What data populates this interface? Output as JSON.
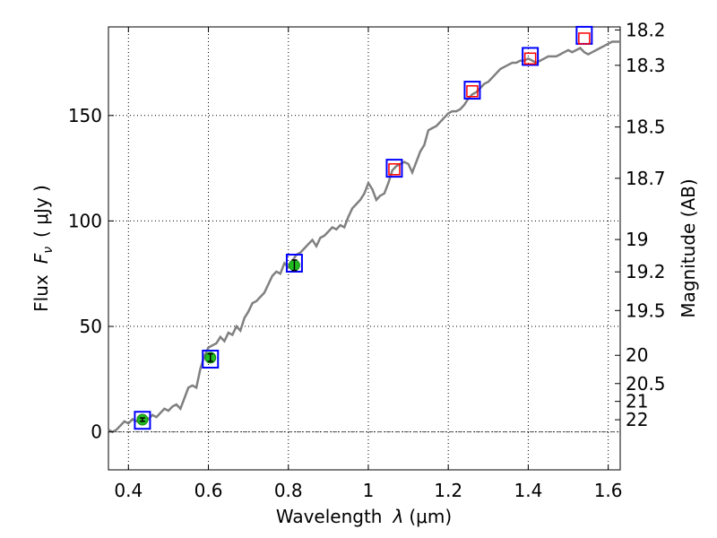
{
  "chart_data": {
    "type": "line",
    "xlabel_text": "Wavelength",
    "xlabel_lambda": "λ",
    "xlabel_unit": "(μm)",
    "ylabel_text": "Flux",
    "ylabel_symbol": "F",
    "ylabel_sub": "ν",
    "ylabel_unit": "( μJy )",
    "y2label": "Magnitude (AB)",
    "xlim": [
      0.35,
      1.63
    ],
    "ylim": [
      -18,
      192
    ],
    "grid": true,
    "xticks": [
      {
        "value": 0.4,
        "label": "0.4"
      },
      {
        "value": 0.6,
        "label": "0.6"
      },
      {
        "value": 0.8,
        "label": "0.8"
      },
      {
        "value": 1.0,
        "label": "1"
      },
      {
        "value": 1.2,
        "label": "1.2"
      },
      {
        "value": 1.4,
        "label": "1.4"
      },
      {
        "value": 1.6,
        "label": "1.6"
      }
    ],
    "yticks": [
      {
        "value": 0,
        "label": "0"
      },
      {
        "value": 50,
        "label": "50"
      },
      {
        "value": 100,
        "label": "100"
      },
      {
        "value": 150,
        "label": "150"
      }
    ],
    "mag_ticks": [
      {
        "mag": 18.2,
        "label": "18.2"
      },
      {
        "mag": 18.3,
        "label": "18.3"
      },
      {
        "mag": 18.5,
        "label": "18.5"
      },
      {
        "mag": 18.7,
        "label": "18.7"
      },
      {
        "mag": 19,
        "label": "19"
      },
      {
        "mag": 19.2,
        "label": "19.2"
      },
      {
        "mag": 19.5,
        "label": "19.5"
      },
      {
        "mag": 20,
        "label": "20"
      },
      {
        "mag": 20.5,
        "label": "20.5"
      },
      {
        "mag": 21,
        "label": "21"
      },
      {
        "mag": 22,
        "label": "22"
      }
    ],
    "zero_line": 0,
    "series": [
      {
        "name": "spectrum",
        "color": "#808080",
        "points": [
          [
            0.35,
            1
          ],
          [
            0.36,
            0
          ],
          [
            0.37,
            1
          ],
          [
            0.38,
            3
          ],
          [
            0.39,
            5
          ],
          [
            0.4,
            4
          ],
          [
            0.41,
            6
          ],
          [
            0.42,
            5
          ],
          [
            0.43,
            6
          ],
          [
            0.44,
            7
          ],
          [
            0.45,
            6
          ],
          [
            0.46,
            8
          ],
          [
            0.47,
            7
          ],
          [
            0.48,
            9
          ],
          [
            0.49,
            11
          ],
          [
            0.5,
            10
          ],
          [
            0.51,
            12
          ],
          [
            0.52,
            13
          ],
          [
            0.53,
            11
          ],
          [
            0.54,
            16
          ],
          [
            0.55,
            21
          ],
          [
            0.56,
            22
          ],
          [
            0.57,
            21
          ],
          [
            0.58,
            30
          ],
          [
            0.59,
            36
          ],
          [
            0.6,
            40
          ],
          [
            0.61,
            41
          ],
          [
            0.62,
            42
          ],
          [
            0.63,
            45
          ],
          [
            0.64,
            43
          ],
          [
            0.65,
            47
          ],
          [
            0.66,
            46
          ],
          [
            0.67,
            50
          ],
          [
            0.68,
            48
          ],
          [
            0.69,
            54
          ],
          [
            0.7,
            57
          ],
          [
            0.71,
            61
          ],
          [
            0.72,
            62
          ],
          [
            0.73,
            64
          ],
          [
            0.74,
            66
          ],
          [
            0.75,
            70
          ],
          [
            0.76,
            74
          ],
          [
            0.77,
            76
          ],
          [
            0.78,
            75
          ],
          [
            0.79,
            80
          ],
          [
            0.8,
            78
          ],
          [
            0.81,
            81
          ],
          [
            0.82,
            84
          ],
          [
            0.83,
            85
          ],
          [
            0.84,
            87
          ],
          [
            0.85,
            89
          ],
          [
            0.86,
            91
          ],
          [
            0.87,
            88
          ],
          [
            0.88,
            92
          ],
          [
            0.89,
            93
          ],
          [
            0.9,
            95
          ],
          [
            0.91,
            97
          ],
          [
            0.92,
            96
          ],
          [
            0.93,
            98
          ],
          [
            0.94,
            97
          ],
          [
            0.95,
            102
          ],
          [
            0.96,
            106
          ],
          [
            0.97,
            108
          ],
          [
            0.98,
            110
          ],
          [
            0.99,
            113
          ],
          [
            1.0,
            118
          ],
          [
            1.01,
            115
          ],
          [
            1.02,
            110
          ],
          [
            1.03,
            112
          ],
          [
            1.04,
            113
          ],
          [
            1.05,
            118
          ],
          [
            1.06,
            124
          ],
          [
            1.07,
            126
          ],
          [
            1.08,
            127
          ],
          [
            1.09,
            128
          ],
          [
            1.1,
            127
          ],
          [
            1.11,
            123
          ],
          [
            1.12,
            128
          ],
          [
            1.13,
            133
          ],
          [
            1.14,
            136
          ],
          [
            1.15,
            143
          ],
          [
            1.16,
            144
          ],
          [
            1.17,
            145
          ],
          [
            1.18,
            147
          ],
          [
            1.19,
            149
          ],
          [
            1.2,
            151
          ],
          [
            1.21,
            152
          ],
          [
            1.22,
            152
          ],
          [
            1.23,
            153
          ],
          [
            1.24,
            155
          ],
          [
            1.25,
            158
          ],
          [
            1.26,
            160
          ],
          [
            1.27,
            161
          ],
          [
            1.28,
            163
          ],
          [
            1.29,
            165
          ],
          [
            1.3,
            166
          ],
          [
            1.31,
            168
          ],
          [
            1.32,
            170
          ],
          [
            1.33,
            172
          ],
          [
            1.34,
            173
          ],
          [
            1.35,
            174
          ],
          [
            1.36,
            175
          ],
          [
            1.37,
            175
          ],
          [
            1.38,
            176
          ],
          [
            1.39,
            176
          ],
          [
            1.4,
            177
          ],
          [
            1.41,
            176
          ],
          [
            1.42,
            175
          ],
          [
            1.43,
            176
          ],
          [
            1.44,
            177
          ],
          [
            1.45,
            178
          ],
          [
            1.46,
            178
          ],
          [
            1.47,
            178
          ],
          [
            1.48,
            179
          ],
          [
            1.49,
            180
          ],
          [
            1.5,
            181
          ],
          [
            1.51,
            180
          ],
          [
            1.52,
            181
          ],
          [
            1.53,
            182
          ],
          [
            1.54,
            180
          ],
          [
            1.55,
            179
          ],
          [
            1.56,
            180
          ],
          [
            1.57,
            181
          ],
          [
            1.58,
            182
          ],
          [
            1.59,
            183
          ],
          [
            1.6,
            184
          ],
          [
            1.61,
            185
          ],
          [
            1.62,
            185
          ],
          [
            1.63,
            185
          ]
        ]
      }
    ],
    "model_points": [
      {
        "x": 0.435,
        "y": 5.5
      },
      {
        "x": 0.605,
        "y": 34.5
      },
      {
        "x": 0.815,
        "y": 80
      },
      {
        "x": 1.065,
        "y": 125
      },
      {
        "x": 1.26,
        "y": 162
      },
      {
        "x": 1.405,
        "y": 178
      },
      {
        "x": 1.54,
        "y": 188
      }
    ],
    "observed_points": [
      {
        "x": 0.435,
        "y": 5.8,
        "err": 0.8
      },
      {
        "x": 0.605,
        "y": 35.2,
        "err": 1.8
      },
      {
        "x": 0.815,
        "y": 79,
        "err": 2.5
      }
    ],
    "upper_points": [
      {
        "x": 1.065,
        "y": 124.5
      },
      {
        "x": 1.26,
        "y": 161.5
      },
      {
        "x": 1.405,
        "y": 177
      },
      {
        "x": 1.54,
        "y": 186.5
      }
    ],
    "colors": {
      "spectrum": "#808080",
      "model_box": "#0000ff",
      "observed": "#22bb22",
      "upper": "#ff0000"
    }
  }
}
